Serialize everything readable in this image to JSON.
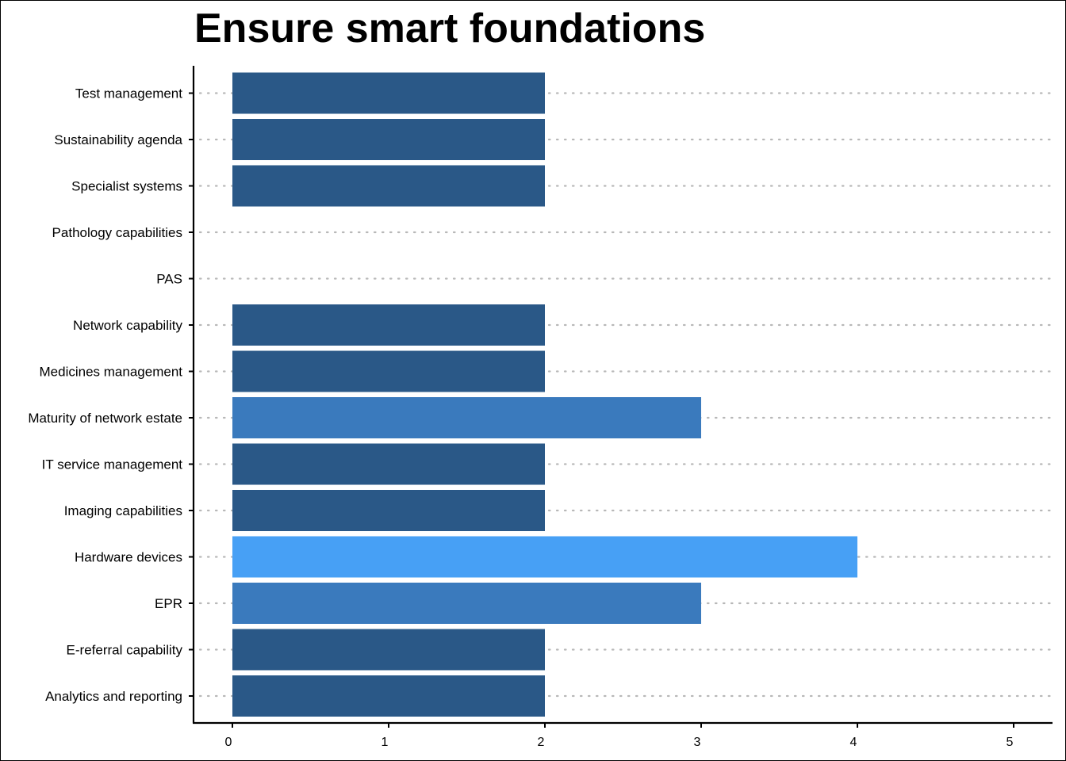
{
  "chart_data": {
    "type": "bar",
    "orientation": "horizontal",
    "title": "Ensure smart foundations",
    "xlabel": "",
    "ylabel": "",
    "categories": [
      "Test management",
      "Sustainability agenda",
      "Specialist systems",
      "Pathology capabilities",
      "PAS",
      "Network capability",
      "Medicines management",
      "Maturity of network estate",
      "IT service management",
      "Imaging capabilities",
      "Hardware devices",
      "EPR",
      "E-referral capability",
      "Analytics and reporting"
    ],
    "values": [
      2,
      2,
      2,
      null,
      null,
      2,
      2,
      3,
      2,
      2,
      4,
      3,
      2,
      2
    ],
    "xlim": [
      0,
      5
    ],
    "xticks": [
      "0",
      "1",
      "2",
      "3",
      "4",
      "5"
    ],
    "grid": "dotted horizontal",
    "legend": "none",
    "colors": {
      "2": "#2a5887",
      "3": "#3a7abd",
      "4": "#47a0f5"
    }
  }
}
